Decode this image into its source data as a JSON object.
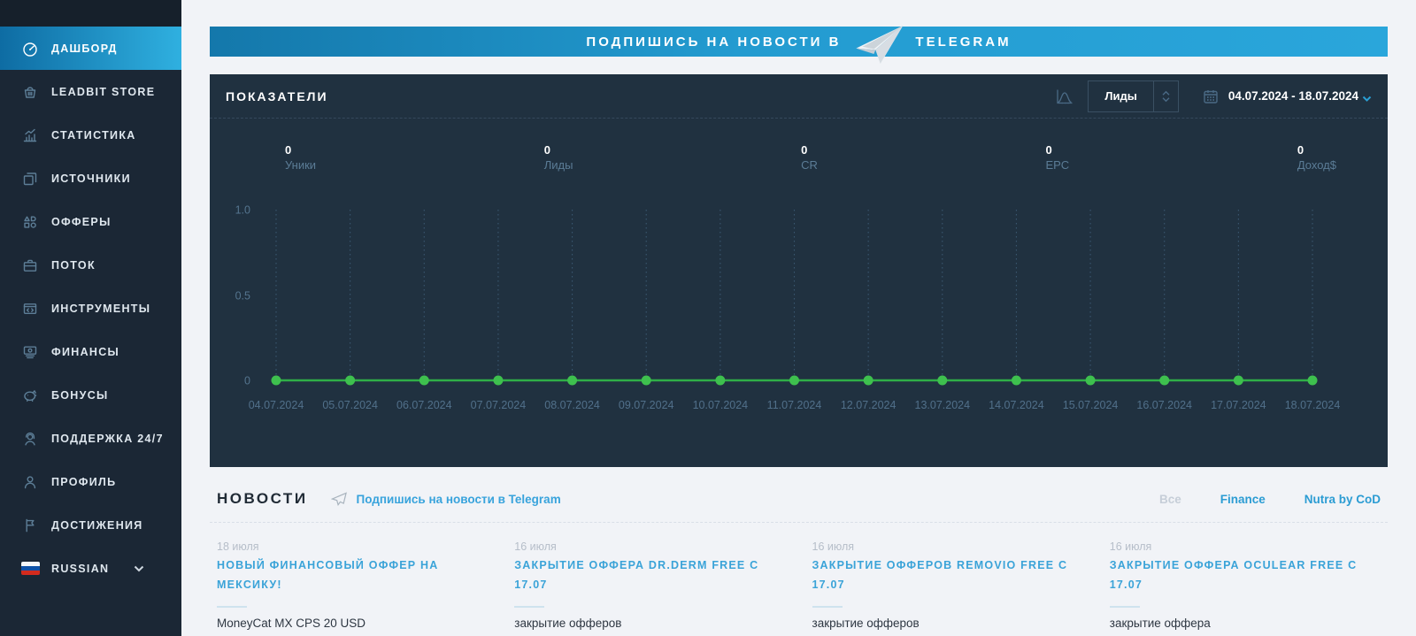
{
  "colors": {
    "accent_blue": "#2a9fd4",
    "link_blue": "#3aa3d8",
    "green": "#3ec04e",
    "sidebar_bg": "#1b2735",
    "panel_bg": "#203140",
    "page_bg": "#f1f3f7"
  },
  "sidebar": {
    "items": [
      {
        "label": "ДАШБОРД",
        "icon": "dashboard",
        "active": true
      },
      {
        "label": "LEADBIT STORE",
        "icon": "store",
        "active": false
      },
      {
        "label": "СТАТИСТИКА",
        "icon": "statistics",
        "active": false
      },
      {
        "label": "ИСТОЧНИКИ",
        "icon": "sources",
        "active": false
      },
      {
        "label": "ОФФЕРЫ",
        "icon": "offers",
        "active": false
      },
      {
        "label": "ПОТОК",
        "icon": "briefcase",
        "active": false
      },
      {
        "label": "ИНСТРУМЕНТЫ",
        "icon": "tools",
        "active": false
      },
      {
        "label": "ФИНАНСЫ",
        "icon": "finance",
        "active": false
      },
      {
        "label": "БОНУСЫ",
        "icon": "piggy-bank",
        "active": false
      },
      {
        "label": "ПОДДЕРЖКА 24/7",
        "icon": "support",
        "active": false
      },
      {
        "label": "ПРОФИЛЬ",
        "icon": "profile",
        "active": false
      },
      {
        "label": "ДОСТИЖЕНИЯ",
        "icon": "flag",
        "active": false
      }
    ],
    "language": {
      "label": "RUSSIAN",
      "flag": "russia"
    }
  },
  "banner": {
    "text_before": "ПОДПИШИСЬ НА НОВОСТИ В",
    "text_after": "TELEGRAM"
  },
  "indicators": {
    "title": "ПОКАЗАТЕЛИ",
    "metric_select": {
      "value": "Лиды"
    },
    "date_range": "04.07.2024 - 18.07.2024",
    "metrics": [
      {
        "value": "0",
        "label": "Уники"
      },
      {
        "value": "0",
        "label": "Лиды"
      },
      {
        "value": "0",
        "label": "CR"
      },
      {
        "value": "0",
        "label": "EPC"
      },
      {
        "value": "0",
        "label": "Доход$"
      }
    ],
    "chart": {
      "type": "line",
      "x": [
        "04.07.2024",
        "05.07.2024",
        "06.07.2024",
        "07.07.2024",
        "08.07.2024",
        "09.07.2024",
        "10.07.2024",
        "11.07.2024",
        "12.07.2024",
        "13.07.2024",
        "14.07.2024",
        "15.07.2024",
        "16.07.2024",
        "17.07.2024",
        "18.07.2024"
      ],
      "values": [
        0,
        0,
        0,
        0,
        0,
        0,
        0,
        0,
        0,
        0,
        0,
        0,
        0,
        0,
        0
      ],
      "yticks": [
        "0",
        "0.5",
        "1.0"
      ],
      "ylim": [
        0,
        1
      ],
      "grid": "vertical-dashed",
      "line_color": "#2fae47",
      "point_color": "#3ec04e"
    }
  },
  "news": {
    "title": "НОВОСТИ",
    "subscribe_link": "Подпишись на новости в Telegram",
    "filters": [
      {
        "label": "Все",
        "muted": true
      },
      {
        "label": "Finance",
        "muted": false
      },
      {
        "label": "Nutra by CoD",
        "muted": false
      }
    ],
    "items": [
      {
        "date": "18 июля",
        "title": "НОВЫЙ ФИНАНСОВЫЙ ОФФЕР НА МЕКСИКУ!",
        "body": "MoneyCat MX CPS 20 USD"
      },
      {
        "date": "16 июля",
        "title": "ЗАКРЫТИЕ ОФФЕРА DR.DERM FREE С 17.07",
        "body": "закрытие офферов"
      },
      {
        "date": "16 июля",
        "title": "ЗАКРЫТИЕ ОФФЕРОВ REMOVIO FREE С 17.07",
        "body": "закрытие офферов"
      },
      {
        "date": "16 июля",
        "title": "ЗАКРЫТИЕ ОФФЕРА OCULEAR FREE С 17.07",
        "body": "закрытие оффера"
      }
    ]
  }
}
